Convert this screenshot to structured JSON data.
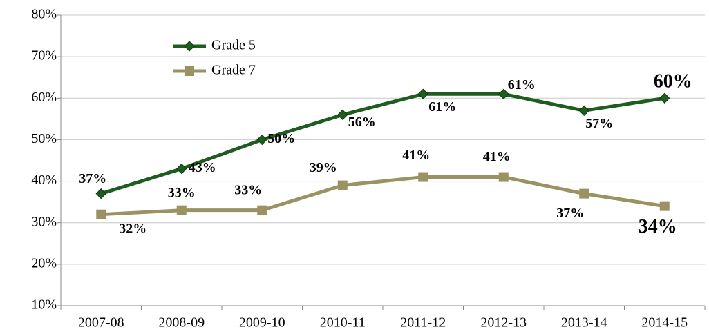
{
  "chart_data": {
    "type": "line",
    "categories": [
      "2007-08",
      "2008-09",
      "2009-10",
      "2010-11",
      "2011-12",
      "2012-13",
      "2013-14",
      "2014-15"
    ],
    "series": [
      {
        "name": "Grade 5",
        "color": "#1f5c1f",
        "label_color": "#1f5c1f",
        "marker": "diamond",
        "values": [
          37,
          43,
          50,
          56,
          61,
          61,
          57,
          60
        ],
        "value_labels": [
          "37%",
          "43%",
          "50%",
          "56%",
          "61%",
          "61%",
          "57%",
          "60%"
        ]
      },
      {
        "name": "Grade 7",
        "color": "#9a9263",
        "label_color": "#5b5035",
        "marker": "square",
        "values": [
          32,
          33,
          33,
          39,
          41,
          41,
          37,
          34
        ],
        "value_labels": [
          "32%",
          "33%",
          "33%",
          "39%",
          "41%",
          "41%",
          "37%",
          "34%"
        ]
      }
    ],
    "ylim": [
      10,
      80
    ],
    "yticks": [
      {
        "value": 10,
        "label": "10%"
      },
      {
        "value": 20,
        "label": "20%"
      },
      {
        "value": 30,
        "label": "30%"
      },
      {
        "value": 40,
        "label": "40%"
      },
      {
        "value": 50,
        "label": "50%"
      },
      {
        "value": 60,
        "label": "60%"
      },
      {
        "value": 70,
        "label": "70%"
      },
      {
        "value": 80,
        "label": "80%"
      }
    ],
    "grid": true
  }
}
